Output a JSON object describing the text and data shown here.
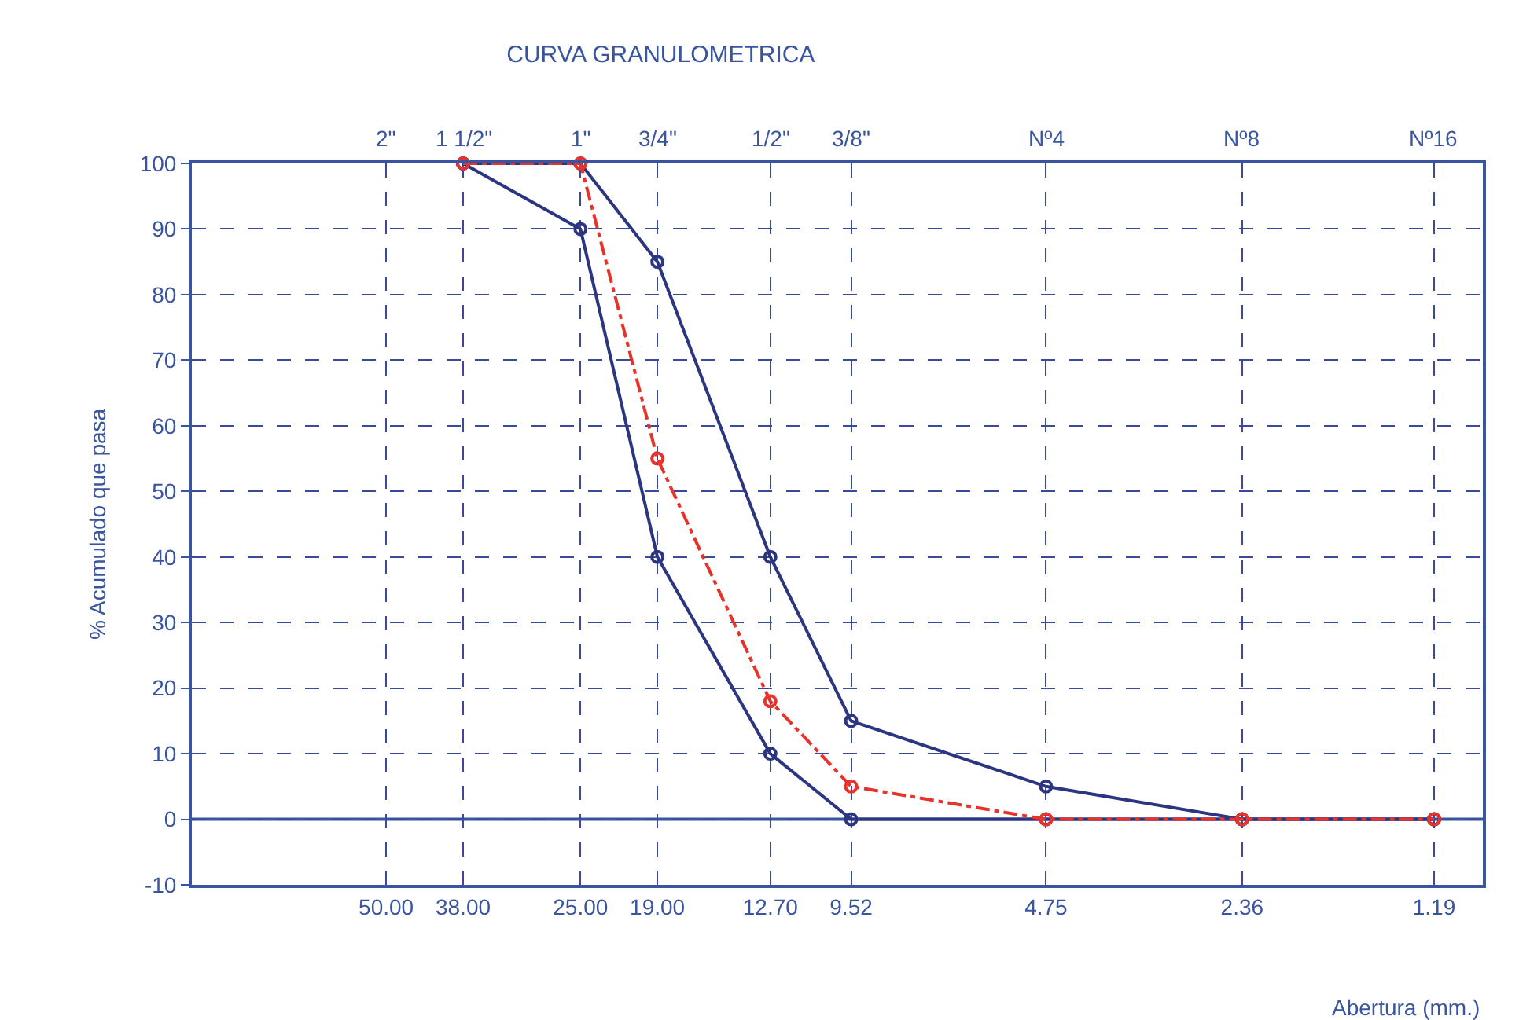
{
  "chart_data": {
    "type": "line",
    "title": "CURVA GRANULOMETRICA",
    "xlabel": "Abertura (mm.)",
    "ylabel": "% Acumulado que pasa",
    "x": [
      38,
      25,
      19,
      12.7,
      9.52,
      4.75,
      2.36,
      1.19
    ],
    "series": [
      {
        "color": "#2b3580",
        "values": [
          100,
          100,
          85,
          40,
          15,
          5,
          0,
          0
        ],
        "line_style": "solid"
      },
      {
        "color": "#2b3580",
        "values": [
          100,
          90,
          40,
          10,
          0,
          0,
          0,
          0
        ],
        "line_style": "solid"
      },
      {
        "color": "#e8322a",
        "values": [
          100,
          100,
          55,
          18,
          5,
          0,
          0,
          0
        ],
        "line_style": "dashdot"
      }
    ],
    "log": "x",
    "xlim": [
      100,
      1
    ],
    "xticks": [
      {
        "value": 50,
        "label": "50.00"
      },
      {
        "value": 38,
        "label": "38.00"
      },
      {
        "value": 25,
        "label": "25.00"
      },
      {
        "value": 19,
        "label": "19.00"
      },
      {
        "value": 12.7,
        "label": "12.70"
      },
      9.52,
      4.75,
      2.36,
      1.19
    ],
    "annotations": [
      "2\"",
      "1 1/2\"",
      "1\"",
      "3/4\"",
      "1/2\"",
      "3/8\"",
      "Nº4",
      "Nº8",
      "Nº16"
    ],
    "ref_lines": [
      {
        "axis": "y",
        "value": 0,
        "color": "#3a55a0"
      }
    ],
    "ylim": [
      -10,
      100
    ],
    "yticks": [
      -10,
      0,
      10,
      20,
      30,
      40,
      50,
      60,
      70,
      80,
      90,
      100
    ],
    "grid": true,
    "marker": "circle"
  }
}
